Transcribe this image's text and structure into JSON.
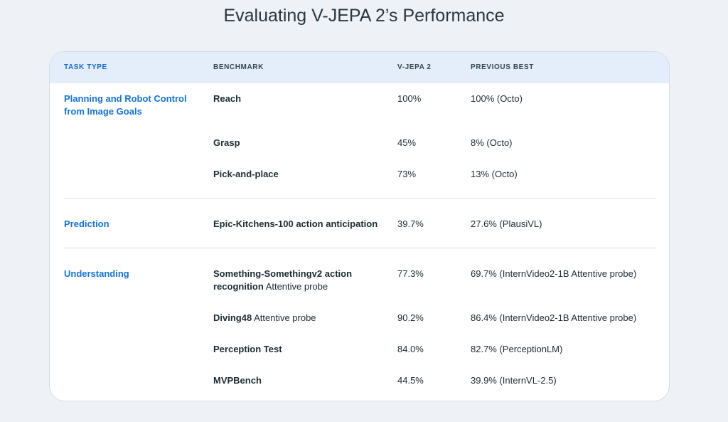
{
  "title": "Evaluating V-JEPA 2’s Performance",
  "table": {
    "headers": {
      "task_type": "TASK TYPE",
      "benchmark": "BENCHMARK",
      "vjepa2": "V-JEPA 2",
      "previous_best": "PREVIOUS BEST"
    },
    "groups": [
      {
        "task": "Planning and Robot Control from Image Goals",
        "rows": [
          {
            "benchmark": "Reach",
            "suffix": "",
            "vjepa2": "100%",
            "previous_best": "100% (Octo)"
          },
          {
            "benchmark": "Grasp",
            "suffix": "",
            "vjepa2": "45%",
            "previous_best": "8% (Octo)"
          },
          {
            "benchmark": "Pick-and-place",
            "suffix": "",
            "vjepa2": "73%",
            "previous_best": "13% (Octo)"
          }
        ]
      },
      {
        "task": "Prediction",
        "rows": [
          {
            "benchmark": "Epic-Kitchens-100 action anticipation",
            "suffix": "",
            "vjepa2": "39.7%",
            "previous_best": "27.6% (PlausiVL)"
          }
        ]
      },
      {
        "task": "Understanding",
        "rows": [
          {
            "benchmark": "Something-Somethingv2 action recognition",
            "suffix": "Attentive probe",
            "vjepa2": "77.3%",
            "previous_best": "69.7% (InternVideo2-1B Attentive probe)"
          },
          {
            "benchmark": "Diving48",
            "suffix": "Attentive probe",
            "vjepa2": "90.2%",
            "previous_best": "86.4% (InternVideo2-1B Attentive probe)"
          },
          {
            "benchmark": "Perception Test",
            "suffix": "",
            "vjepa2": "84.0%",
            "previous_best": "82.7% (PerceptionLM)"
          },
          {
            "benchmark": "MVPBench",
            "suffix": "",
            "vjepa2": "44.5%",
            "previous_best": "39.9% (InternVL-2.5)"
          }
        ]
      }
    ]
  }
}
